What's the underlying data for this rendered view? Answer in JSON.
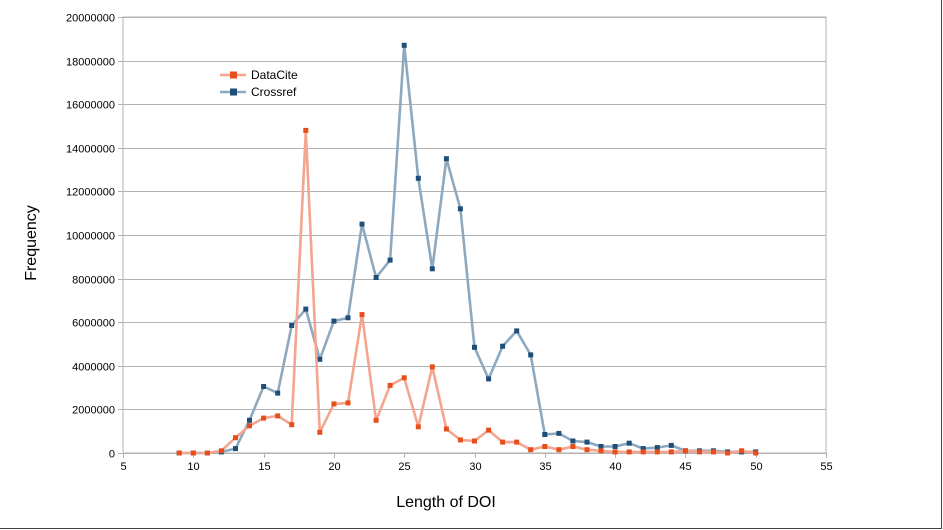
{
  "chart_data": {
    "type": "line",
    "xlabel": "Length of DOI",
    "ylabel": "Frequency",
    "xlim": [
      5,
      55
    ],
    "ylim": [
      0,
      20000000
    ],
    "x_ticks": [
      5,
      10,
      15,
      20,
      25,
      30,
      35,
      40,
      45,
      50,
      55
    ],
    "y_ticks": [
      0,
      2000000,
      4000000,
      6000000,
      8000000,
      10000000,
      12000000,
      14000000,
      16000000,
      18000000,
      20000000
    ],
    "x_tick_labels": [
      "5",
      "10",
      "15",
      "20",
      "25",
      "30",
      "35",
      "40",
      "45",
      "50",
      "55"
    ],
    "y_tick_labels": [
      "0",
      "2000000",
      "4000000",
      "6000000",
      "8000000",
      "10000000",
      "12000000",
      "14000000",
      "16000000",
      "18000000",
      "20000000"
    ],
    "grid": "horizontal",
    "legend_position": "top-left",
    "x": [
      9,
      10,
      11,
      12,
      13,
      14,
      15,
      16,
      17,
      18,
      19,
      20,
      21,
      22,
      23,
      24,
      25,
      26,
      27,
      28,
      29,
      30,
      31,
      32,
      33,
      34,
      35,
      36,
      37,
      38,
      39,
      40,
      41,
      42,
      43,
      44,
      45,
      46,
      47,
      48,
      49,
      50
    ],
    "series": [
      {
        "name": "DataCite",
        "color": "#f4a58f",
        "marker_color": "#e84e1b",
        "values": [
          0,
          0,
          0,
          100000,
          700000,
          1250000,
          1600000,
          1700000,
          1300000,
          14800000,
          950000,
          2250000,
          2300000,
          6350000,
          1500000,
          3100000,
          3450000,
          1200000,
          3950000,
          1100000,
          600000,
          550000,
          1050000,
          500000,
          500000,
          150000,
          300000,
          150000,
          300000,
          150000,
          100000,
          50000,
          50000,
          50000,
          50000,
          50000,
          100000,
          50000,
          50000,
          0,
          100000,
          0
        ]
      },
      {
        "name": "Crossref",
        "color": "#8da9c0",
        "marker_color": "#1f4e79",
        "values": [
          0,
          0,
          0,
          50000,
          200000,
          1500000,
          3050000,
          2750000,
          5850000,
          6600000,
          4300000,
          6050000,
          6200000,
          10500000,
          8050000,
          8850000,
          18700000,
          12600000,
          8450000,
          13500000,
          11200000,
          4850000,
          3400000,
          4900000,
          5600000,
          4500000,
          850000,
          900000,
          550000,
          500000,
          300000,
          300000,
          450000,
          200000,
          250000,
          350000,
          100000,
          100000,
          100000,
          50000,
          50000,
          50000
        ]
      }
    ]
  }
}
